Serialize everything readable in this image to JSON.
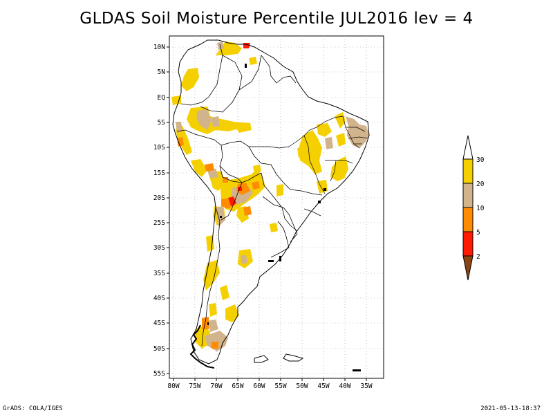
{
  "title": "GLDAS Soil Moisture Percentile JUL2016 lev = 4",
  "footer": {
    "left": "GrADS: COLA/IGES",
    "right": "2021-05-13-18:37"
  },
  "axes": {
    "lat_labels": [
      "10N",
      "5N",
      "EQ",
      "5S",
      "10S",
      "15S",
      "20S",
      "25S",
      "30S",
      "35S",
      "40S",
      "45S",
      "50S",
      "55S"
    ],
    "lon_labels": [
      "80W",
      "75W",
      "70W",
      "65W",
      "60W",
      "55W",
      "50W",
      "45W",
      "40W",
      "35W"
    ]
  },
  "legend": {
    "levels": [
      "2",
      "5",
      "10",
      "20",
      "30"
    ],
    "colors": {
      "gt30": "#ffffff",
      "20to30": "#f5d000",
      "10to20": "#d2b48c",
      "5to10": "#ff8c00",
      "2to5": "#ff1a00",
      "lt2": "#8b4513"
    }
  }
}
